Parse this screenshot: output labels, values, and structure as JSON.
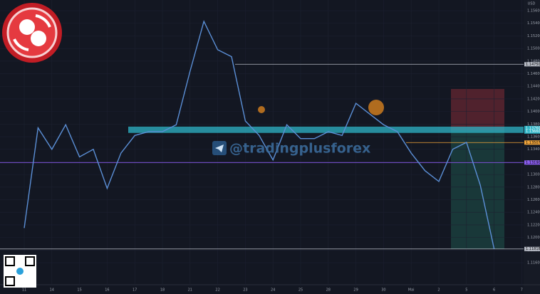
{
  "chart_data": {
    "type": "line",
    "currency": "USD",
    "watermark": "@tradingplusforex",
    "categories": [
      "11",
      null,
      "14",
      null,
      "15",
      null,
      "16",
      null,
      "17",
      null,
      "18",
      null,
      "21",
      null,
      "22",
      null,
      "23",
      null,
      "24",
      null,
      "25",
      null,
      "28",
      null,
      "29",
      null,
      "30",
      null,
      "Mai",
      null,
      "2",
      null,
      "5",
      null,
      "6",
      null,
      "7"
    ],
    "series": [
      {
        "color": "#5b8fd6",
        "values": [
          1.1215,
          1.1374,
          1.134,
          1.1379,
          1.1328,
          1.134,
          1.1278,
          1.1334,
          1.1362,
          1.1368,
          1.1368,
          1.1379,
          1.1464,
          1.1543,
          1.1498,
          1.1487,
          1.1385,
          1.1362,
          1.1323,
          1.1379,
          1.1357,
          1.1357,
          1.1368,
          1.1362,
          1.1413,
          1.1396,
          1.1379,
          1.1368,
          1.1334,
          1.1306,
          1.1289,
          1.134,
          1.1351,
          1.1283,
          1.1182,
          null,
          null
        ]
      }
    ],
    "ylim": [
      1.1125,
      1.1577
    ],
    "yticks": [
      {
        "value": 1.116,
        "label": "1.11600"
      },
      {
        "value": 1.118,
        "label": "1.11800"
      },
      {
        "value": 1.12,
        "label": "1.12000"
      },
      {
        "value": 1.122,
        "label": "1.12200"
      },
      {
        "value": 1.124,
        "label": "1.12400"
      },
      {
        "value": 1.126,
        "label": "1.12600"
      },
      {
        "value": 1.128,
        "label": "1.12800"
      },
      {
        "value": 1.13,
        "label": "1.13000"
      },
      {
        "value": 1.132,
        "label": "1.13200"
      },
      {
        "value": 1.134,
        "label": "1.13400"
      },
      {
        "value": 1.136,
        "label": "1.13600"
      },
      {
        "value": 1.138,
        "label": "1.13800"
      },
      {
        "value": 1.14,
        "label": "1.14000"
      },
      {
        "value": 1.142,
        "label": "1.14200"
      },
      {
        "value": 1.144,
        "label": "1.14400"
      },
      {
        "value": 1.146,
        "label": "1.14600"
      },
      {
        "value": 1.148,
        "label": "1.14800"
      },
      {
        "value": 1.15,
        "label": "1.15000"
      },
      {
        "value": 1.152,
        "label": "1.15200"
      },
      {
        "value": 1.154,
        "label": "1.15400"
      },
      {
        "value": 1.156,
        "label": "1.15600"
      }
    ],
    "levels": [
      {
        "value": 1.1475,
        "label": "1.14750",
        "color": "#b8bcc6"
      },
      {
        "value": 1.13507,
        "label": "1.13507",
        "color": "#f2a53a"
      },
      {
        "value": 1.1319,
        "label": "1.13190",
        "color": "#8a5cf0"
      },
      {
        "value": 1.11818,
        "label": "1.11818",
        "color": "#b8bcc6"
      }
    ],
    "zone": {
      "from": 1.1366,
      "to": 1.1376,
      "color": "#2fb6c8",
      "labels": [
        "1.13760",
        "1.13660"
      ]
    }
  }
}
